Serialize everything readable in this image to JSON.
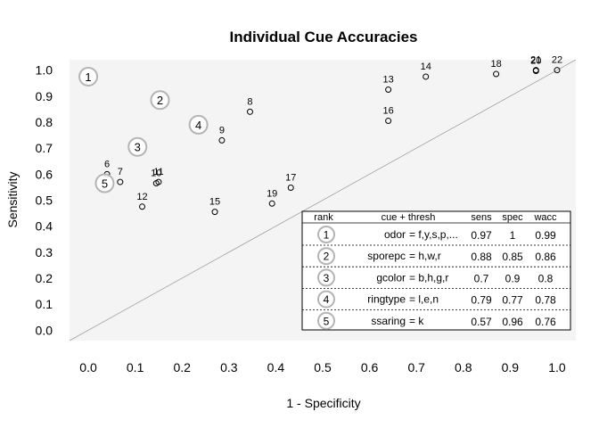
{
  "chart_data": {
    "type": "scatter",
    "title": "Individual Cue Accuracies",
    "xlabel": "1 - Specificity",
    "ylabel": "Sensitivity",
    "xlim": [
      -0.04,
      1.04
    ],
    "ylim": [
      -0.04,
      1.04
    ],
    "x_ticks": [
      "0.0",
      "0.1",
      "0.2",
      "0.3",
      "0.4",
      "0.5",
      "0.6",
      "0.7",
      "0.8",
      "0.9",
      "1.0"
    ],
    "y_ticks": [
      "0.0",
      "0.1",
      "0.2",
      "0.3",
      "0.4",
      "0.5",
      "0.6",
      "0.7",
      "0.8",
      "0.9",
      "1.0"
    ],
    "grid": false,
    "diagonal_line": true,
    "points": [
      {
        "label": "6",
        "x": 0.04,
        "y": 0.6
      },
      {
        "label": "7",
        "x": 0.068,
        "y": 0.57
      },
      {
        "label": "8",
        "x": 0.345,
        "y": 0.84
      },
      {
        "label": "9",
        "x": 0.285,
        "y": 0.73
      },
      {
        "label": "10",
        "x": 0.145,
        "y": 0.565
      },
      {
        "label": "11",
        "x": 0.15,
        "y": 0.57
      },
      {
        "label": "12",
        "x": 0.115,
        "y": 0.475
      },
      {
        "label": "13",
        "x": 0.64,
        "y": 0.925
      },
      {
        "label": "14",
        "x": 0.72,
        "y": 0.975
      },
      {
        "label": "15",
        "x": 0.27,
        "y": 0.455
      },
      {
        "label": "16",
        "x": 0.64,
        "y": 0.805
      },
      {
        "label": "17",
        "x": 0.432,
        "y": 0.548
      },
      {
        "label": "18",
        "x": 0.87,
        "y": 0.985
      },
      {
        "label": "19",
        "x": 0.392,
        "y": 0.487
      },
      {
        "label": "20",
        "x": 0.955,
        "y": 0.997
      },
      {
        "label": "21",
        "x": 0.955,
        "y": 1.0
      },
      {
        "label": "22",
        "x": 1.0,
        "y": 1.0
      }
    ],
    "top_cues": [
      {
        "rank": "1",
        "x": 0.0,
        "y": 0.975
      },
      {
        "rank": "2",
        "x": 0.153,
        "y": 0.885
      },
      {
        "rank": "3",
        "x": 0.105,
        "y": 0.705
      },
      {
        "rank": "4",
        "x": 0.235,
        "y": 0.79
      },
      {
        "rank": "5",
        "x": 0.035,
        "y": 0.565
      }
    ],
    "table": {
      "headers": {
        "rank": "rank",
        "cue": "cue + thresh",
        "sens": "sens",
        "spec": "spec",
        "wacc": "wacc"
      },
      "rows": [
        {
          "rank": "1",
          "cue": "odor",
          "thresh": "= f,y,s,p,...",
          "sens": "0.97",
          "spec": "1",
          "wacc": "0.99"
        },
        {
          "rank": "2",
          "cue": "sporepc",
          "thresh": "= h,w,r",
          "sens": "0.88",
          "spec": "0.85",
          "wacc": "0.86"
        },
        {
          "rank": "3",
          "cue": "gcolor",
          "thresh": "= b,h,g,r",
          "sens": "0.7",
          "spec": "0.9",
          "wacc": "0.8"
        },
        {
          "rank": "4",
          "cue": "ringtype",
          "thresh": "= l,e,n",
          "sens": "0.79",
          "spec": "0.77",
          "wacc": "0.78"
        },
        {
          "rank": "5",
          "cue": "ssaring",
          "thresh": "= k",
          "sens": "0.57",
          "spec": "0.96",
          "wacc": "0.76"
        }
      ]
    },
    "colors": {
      "panel_bg": "#f4f4f4",
      "diagonal": "#a0a0a0",
      "circle_stroke": "#b4b4b4",
      "text": "#000000"
    }
  }
}
